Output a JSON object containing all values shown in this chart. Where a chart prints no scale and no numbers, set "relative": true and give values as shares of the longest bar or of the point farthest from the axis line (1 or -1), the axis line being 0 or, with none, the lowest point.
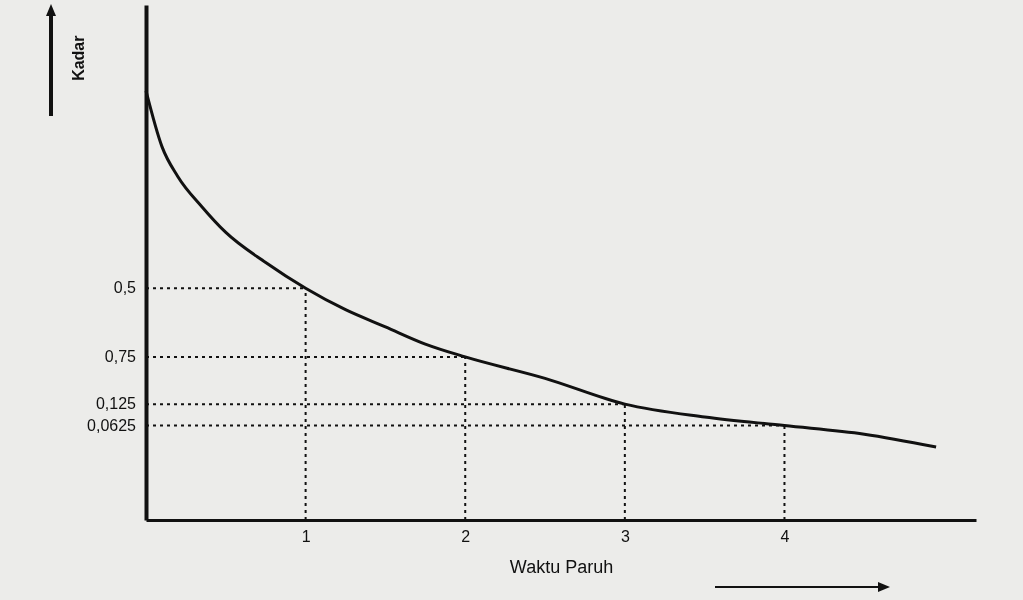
{
  "chart_data": {
    "type": "line",
    "xlabel": "Waktu Paruh",
    "ylabel": "Kadar",
    "relative": true,
    "x": [
      0,
      0.1,
      0.2,
      0.35,
      0.5,
      0.75,
      1,
      1.25,
      1.5,
      1.75,
      2,
      2.5,
      3,
      3.5,
      4,
      4.5,
      4.95
    ],
    "series": [
      {
        "color": "#111111",
        "values": [
          1,
          0.87,
          0.8,
          0.73,
          0.67,
          0.6,
          0.54,
          0.49,
          0.45,
          0.41,
          0.38,
          0.33,
          0.27,
          0.24,
          0.22,
          0.2,
          0.17
        ]
      }
    ],
    "xlim": [
      0,
      5.2
    ],
    "xticks": [
      1,
      2,
      3,
      4
    ],
    "annotations": [
      "0,5",
      "0,75",
      "0,125",
      "0,0625"
    ],
    "ref_lines": [
      {
        "axis": "y",
        "value": 0.54,
        "line_style": "dotted"
      },
      {
        "axis": "y",
        "value": 0.38,
        "line_style": "dotted"
      },
      {
        "axis": "y",
        "value": 0.27,
        "line_style": "dotted"
      },
      {
        "axis": "y",
        "value": 0.22,
        "line_style": "dotted"
      },
      {
        "axis": "x",
        "value": 1,
        "line_style": "dotted"
      },
      {
        "axis": "x",
        "value": 2,
        "line_style": "dotted"
      },
      {
        "axis": "x",
        "value": 3,
        "line_style": "dotted"
      },
      {
        "axis": "x",
        "value": 4,
        "line_style": "dotted"
      }
    ],
    "grid": false,
    "marker": "none",
    "line_style": "solid"
  }
}
